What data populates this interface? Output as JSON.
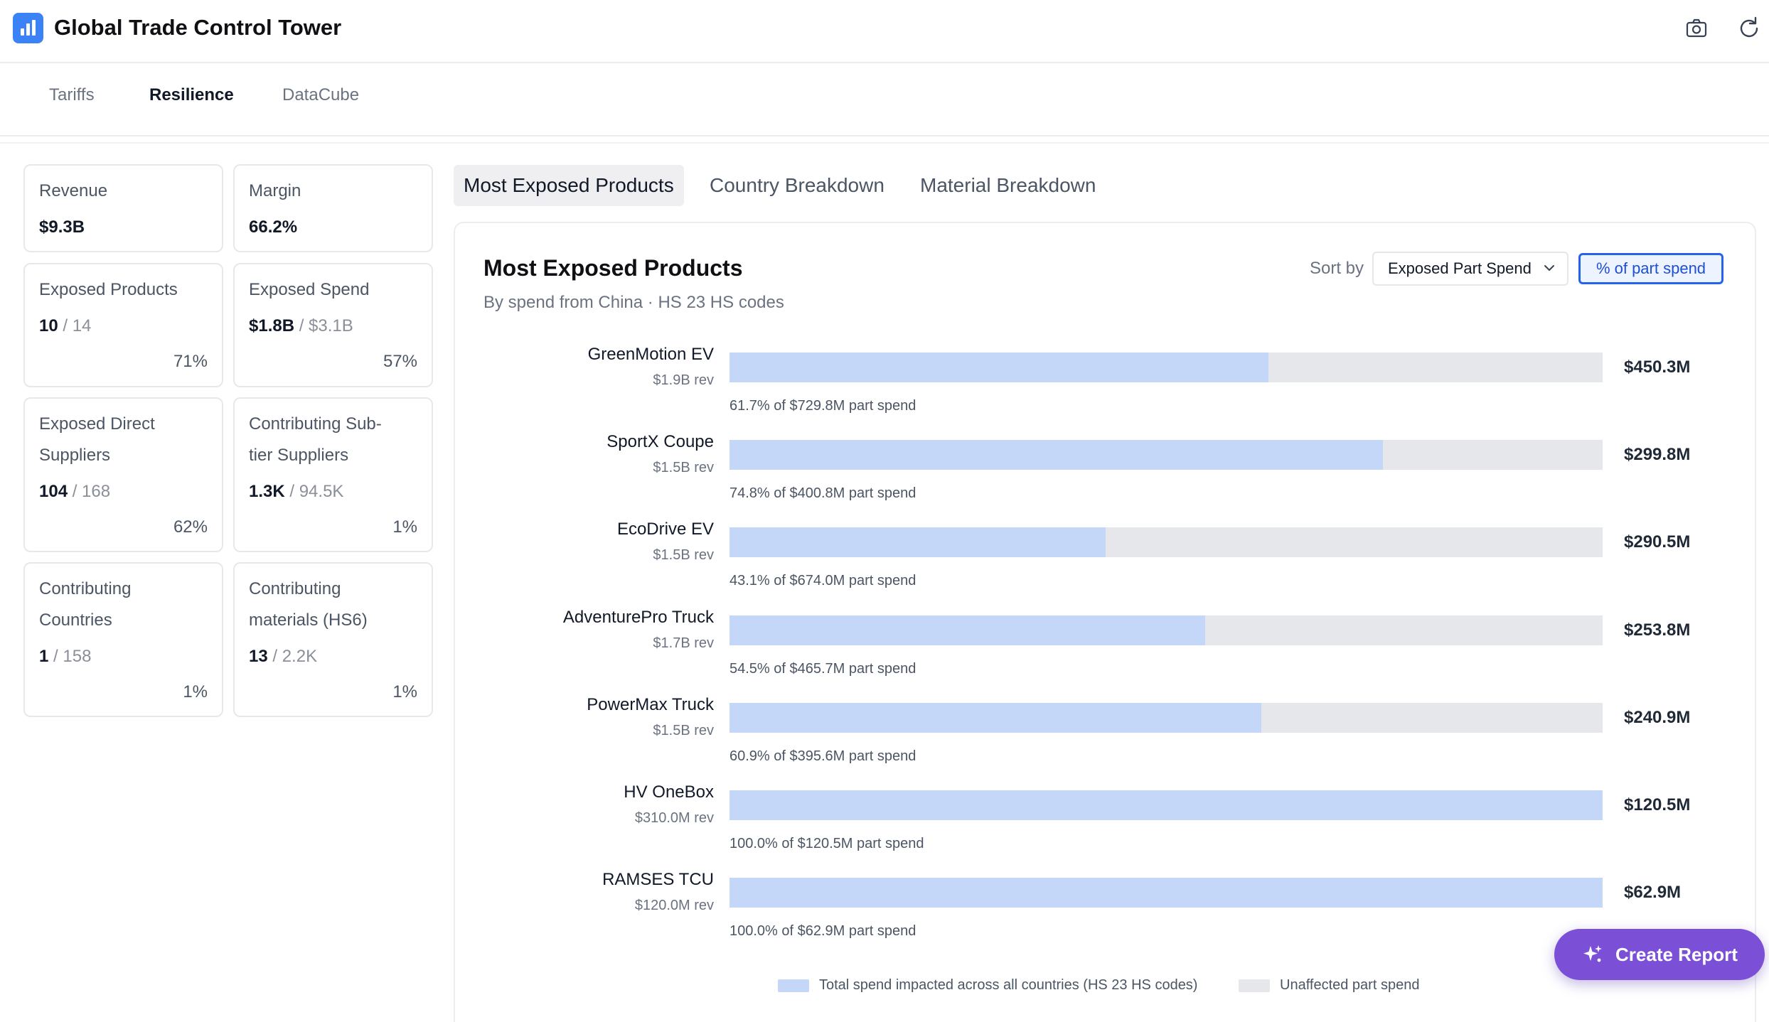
{
  "app": {
    "title": "Global Trade Control Tower",
    "icons": [
      "camera-icon",
      "refresh-icon"
    ]
  },
  "top_tabs": [
    {
      "label": "Tariffs",
      "active": false
    },
    {
      "label": "Resilience",
      "active": true
    },
    {
      "label": "DataCube",
      "active": false
    }
  ],
  "kpis": {
    "revenue": {
      "label": "Revenue",
      "value": "$9.3B"
    },
    "margin": {
      "label": "Margin",
      "value": "66.2%"
    },
    "exposed_products": {
      "label": "Exposed Products",
      "value": "10",
      "total": "/ 14",
      "pct": "71%"
    },
    "exposed_spend": {
      "label": "Exposed Spend",
      "value": "$1.8B",
      "total": "/ $3.1B",
      "pct": "57%"
    },
    "direct_suppliers": {
      "label_1": "Exposed Direct",
      "label_2": "Suppliers",
      "value": "104",
      "total": "/ 168",
      "pct": "62%"
    },
    "subtier_suppliers": {
      "label_1": "Contributing Sub-",
      "label_2": "tier Suppliers",
      "value": "1.3K",
      "total": "/ 94.5K",
      "pct": "1%"
    },
    "countries": {
      "label_1": "Contributing",
      "label_2": "Countries",
      "value": "1",
      "total": "/ 158",
      "pct": "1%"
    },
    "materials": {
      "label_1": "Contributing",
      "label_2": "materials (HS6)",
      "value": "13",
      "total": "/ 2.2K",
      "pct": "1%"
    }
  },
  "content_tabs": [
    {
      "label": "Most Exposed Products",
      "active": true
    },
    {
      "label": "Country Breakdown",
      "active": false
    },
    {
      "label": "Material Breakdown",
      "active": false
    }
  ],
  "panel": {
    "title": "Most Exposed Products",
    "subtitle": "By spend from China · HS 23 HS codes",
    "sort_label": "Sort by",
    "sort_value": "Exposed Part Spend",
    "toggle_label": "% of part spend"
  },
  "chart_data": {
    "type": "bar",
    "orientation": "horizontal",
    "stacked": true,
    "categories": [
      "GreenMotion EV",
      "SportX Coupe",
      "EcoDrive EV",
      "AdventurePro Truck",
      "PowerMax Truck",
      "HV OneBox",
      "RAMSES TCU"
    ],
    "revenue_labels": [
      "$1.9B rev",
      "$1.5B rev",
      "$1.5B rev",
      "$1.7B rev",
      "$1.5B rev",
      "$310.0M rev",
      "$120.0M rev"
    ],
    "value_labels": [
      "$450.3M",
      "$299.8M",
      "$290.5M",
      "$253.8M",
      "$240.9M",
      "$120.5M",
      "$62.9M"
    ],
    "notes": [
      "61.7% of $729.8M part spend",
      "74.8% of $400.8M part spend",
      "43.1% of $674.0M part spend",
      "54.5% of $465.7M part spend",
      "60.9% of $395.6M part spend",
      "100.0% of $120.5M part spend",
      "100.0% of $62.9M part spend"
    ],
    "impacted_pct": [
      61.7,
      74.8,
      43.1,
      54.5,
      60.9,
      100.0,
      100.0
    ],
    "series": [
      {
        "name": "Total spend impacted across all countries (HS 23 HS codes)",
        "color": "#c4d7f8"
      },
      {
        "name": "Unaffected part spend",
        "color": "#e6e7ea"
      }
    ],
    "legend_position": "bottom",
    "grid": false
  },
  "actions": {
    "create_report": "Create Report"
  }
}
